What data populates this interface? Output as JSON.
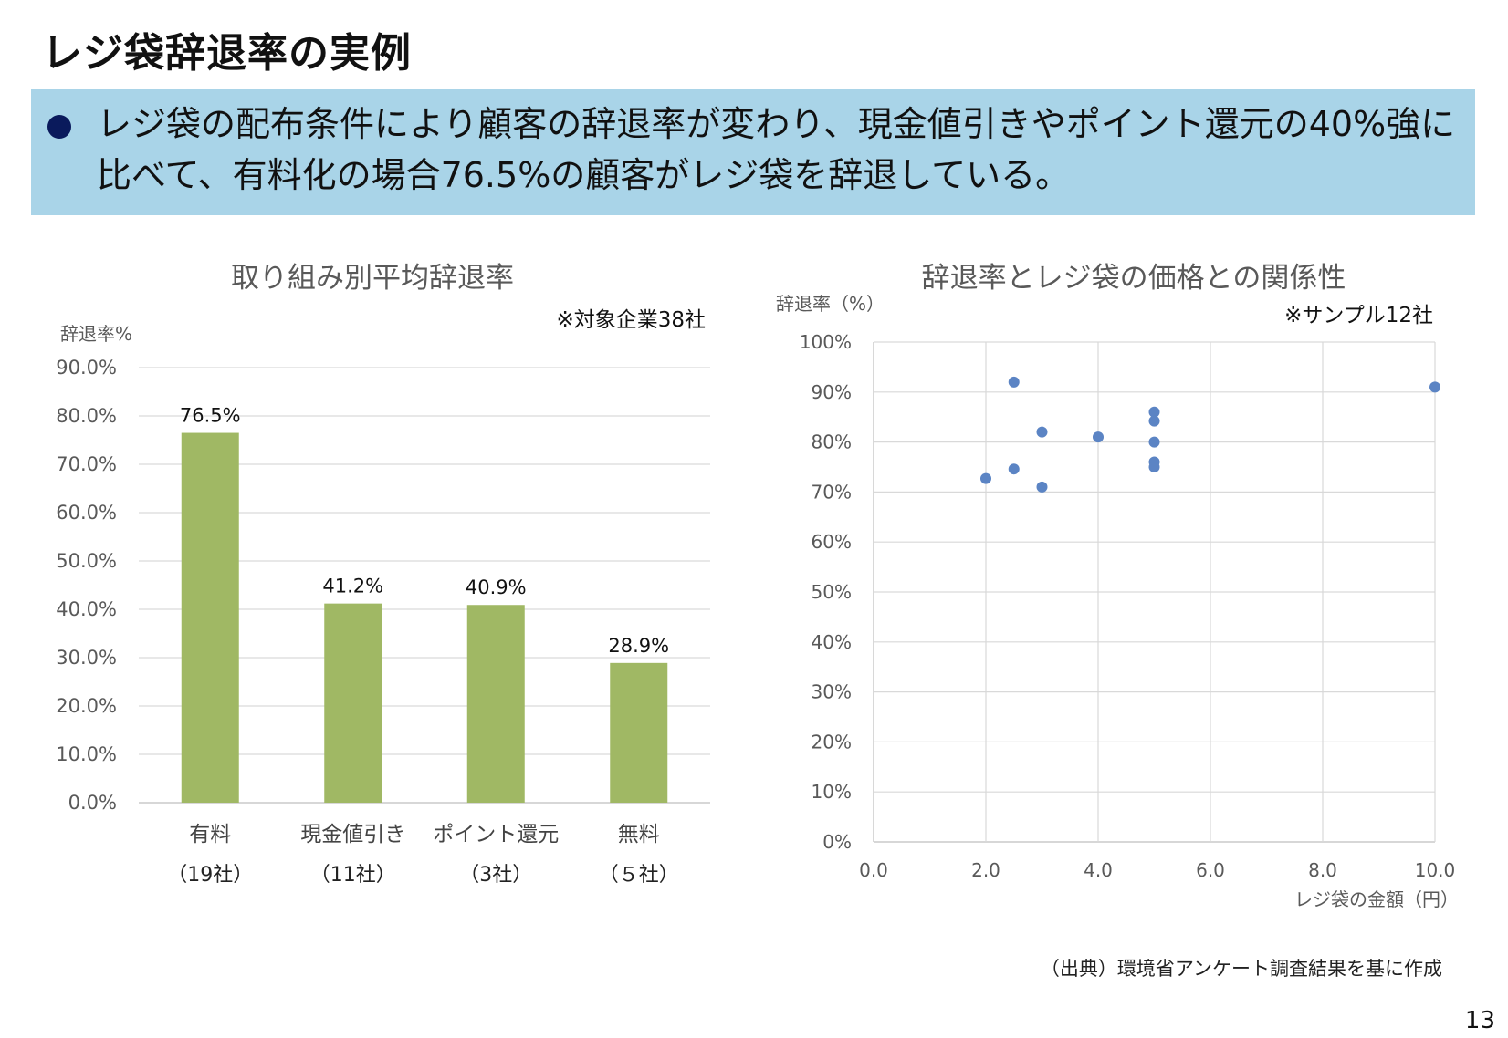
{
  "page": {
    "title": "レジ袋辞退率の実例",
    "summary": "レジ袋の配布条件により顧客の辞退率が変わり、現金値引きやポイント還元の40%強に比べて、有料化の場合76.5%の顧客がレジ袋を辞退している。",
    "source": "（出典）環境省アンケート調査結果を基に作成",
    "page_number": "13"
  },
  "chart_data": [
    {
      "type": "bar",
      "title": "取り組み別平均辞退率",
      "note": "※対象企業38社",
      "ylabel": "辞退率%",
      "ylim": [
        0,
        90
      ],
      "yticks": [
        "90.0%",
        "80.0%",
        "70.0%",
        "60.0%",
        "50.0%",
        "40.0%",
        "30.0%",
        "20.0%",
        "10.0%",
        "0.0%"
      ],
      "categories": [
        "有料",
        "現金値引き",
        "ポイント還元",
        "無料"
      ],
      "category_sublabels": [
        "（19社）",
        "（11社）",
        "（3社）",
        "（５社）"
      ],
      "values": [
        76.5,
        41.2,
        40.9,
        28.9
      ],
      "data_labels": [
        "76.5%",
        "41.2%",
        "40.9%",
        "28.9%"
      ],
      "bar_color": "#a0b864",
      "grid": true
    },
    {
      "type": "scatter",
      "title": "辞退率とレジ袋の価格との関係性",
      "note": "※サンプル12社",
      "ylabel": "辞退率（%）",
      "xlabel": "レジ袋の金額（円）",
      "xlim": [
        0,
        10
      ],
      "ylim": [
        0,
        100
      ],
      "xticks": [
        "0.0",
        "2.0",
        "4.0",
        "6.0",
        "8.0",
        "10.0"
      ],
      "yticks": [
        "100%",
        "90%",
        "80%",
        "70%",
        "60%",
        "50%",
        "40%",
        "30%",
        "20%",
        "10%",
        "0%"
      ],
      "points": [
        {
          "x": 2.0,
          "y": 72.7
        },
        {
          "x": 2.5,
          "y": 92.0
        },
        {
          "x": 2.5,
          "y": 74.6
        },
        {
          "x": 3.0,
          "y": 82.0
        },
        {
          "x": 3.0,
          "y": 71.0
        },
        {
          "x": 4.0,
          "y": 81.0
        },
        {
          "x": 5.0,
          "y": 86.0
        },
        {
          "x": 5.0,
          "y": 84.2
        },
        {
          "x": 5.0,
          "y": 80.0
        },
        {
          "x": 5.0,
          "y": 76.0
        },
        {
          "x": 5.0,
          "y": 75.0
        },
        {
          "x": 10.0,
          "y": 91.0
        }
      ],
      "point_color": "#5b84c4",
      "grid": true
    }
  ]
}
